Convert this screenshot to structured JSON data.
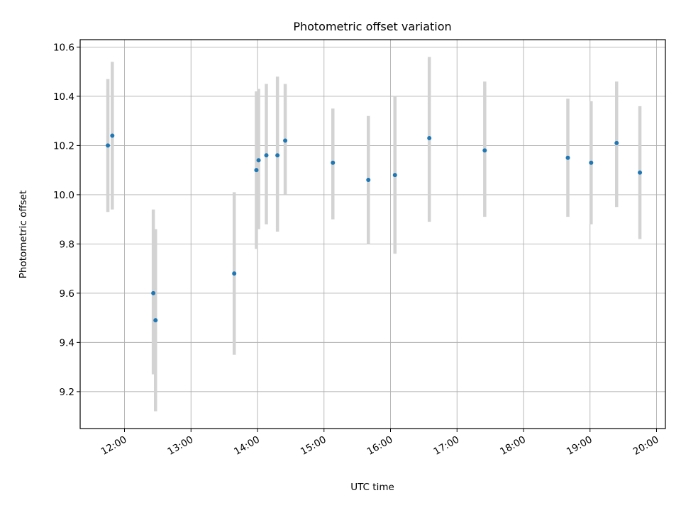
{
  "chart_data": {
    "type": "scatter",
    "title": "Photometric offset variation",
    "xlabel": "UTC time",
    "ylabel": "Photometric offset",
    "x_ticks": [
      "12:00",
      "13:00",
      "14:00",
      "15:00",
      "16:00",
      "17:00",
      "18:00",
      "19:00",
      "20:00"
    ],
    "y_ticks": [
      "9.2",
      "9.4",
      "9.6",
      "9.8",
      "10.0",
      "10.2",
      "10.4",
      "10.6"
    ],
    "xlim": [
      "11:20",
      "20:08"
    ],
    "ylim": [
      9.05,
      10.63
    ],
    "grid": true,
    "point_color": "#1f77b4",
    "errorbar_color": "#d3d3d3",
    "series": [
      {
        "points": [
          {
            "x": "11:45",
            "y": 10.2,
            "ylow": 9.93,
            "yhigh": 10.47
          },
          {
            "x": "11:49",
            "y": 10.24,
            "ylow": 9.94,
            "yhigh": 10.54
          },
          {
            "x": "12:26",
            "y": 9.6,
            "ylow": 9.27,
            "yhigh": 9.94
          },
          {
            "x": "12:28",
            "y": 9.49,
            "ylow": 9.12,
            "yhigh": 9.86
          },
          {
            "x": "13:39",
            "y": 9.68,
            "ylow": 9.35,
            "yhigh": 10.01
          },
          {
            "x": "13:59",
            "y": 10.1,
            "ylow": 9.78,
            "yhigh": 10.42
          },
          {
            "x": "14:01",
            "y": 10.14,
            "ylow": 9.86,
            "yhigh": 10.43
          },
          {
            "x": "14:08",
            "y": 10.16,
            "ylow": 9.88,
            "yhigh": 10.45
          },
          {
            "x": "14:18",
            "y": 10.16,
            "ylow": 9.85,
            "yhigh": 10.48
          },
          {
            "x": "14:25",
            "y": 10.22,
            "ylow": 10.0,
            "yhigh": 10.45
          },
          {
            "x": "15:08",
            "y": 10.13,
            "ylow": 9.9,
            "yhigh": 10.35
          },
          {
            "x": "15:40",
            "y": 10.06,
            "ylow": 9.8,
            "yhigh": 10.32
          },
          {
            "x": "16:04",
            "y": 10.08,
            "ylow": 9.76,
            "yhigh": 10.4
          },
          {
            "x": "16:35",
            "y": 10.23,
            "ylow": 9.89,
            "yhigh": 10.56
          },
          {
            "x": "17:25",
            "y": 10.18,
            "ylow": 9.91,
            "yhigh": 10.46
          },
          {
            "x": "18:40",
            "y": 10.15,
            "ylow": 9.91,
            "yhigh": 10.39
          },
          {
            "x": "19:01",
            "y": 10.13,
            "ylow": 9.88,
            "yhigh": 10.38
          },
          {
            "x": "19:24",
            "y": 10.21,
            "ylow": 9.95,
            "yhigh": 10.46
          },
          {
            "x": "19:45",
            "y": 10.09,
            "ylow": 9.82,
            "yhigh": 10.36
          }
        ]
      }
    ]
  }
}
